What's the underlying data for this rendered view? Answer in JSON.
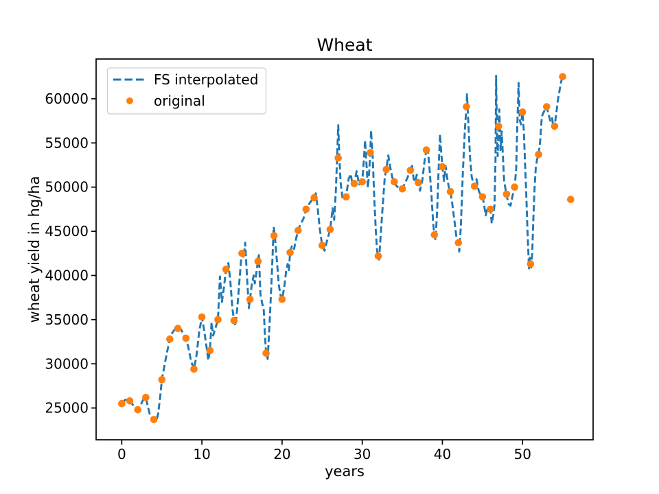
{
  "chart_data": {
    "type": "line",
    "title": "Wheat",
    "xlabel": "years",
    "ylabel": "wheat yield in hg/ha",
    "grid": false,
    "x_range": [
      -3.2,
      58.8
    ],
    "y_range": [
      21400,
      64500
    ],
    "x_ticks": [
      0,
      10,
      20,
      30,
      40,
      50
    ],
    "y_ticks": [
      25000,
      30000,
      35000,
      40000,
      45000,
      50000,
      55000,
      60000
    ],
    "colors": {
      "interpolated": "#1f77b4",
      "original": "#ff7f0e"
    },
    "legend": {
      "position": "upper-left",
      "items": [
        {
          "label": "FS interpolated",
          "marker": "dashed-line",
          "color": "#1f77b4"
        },
        {
          "label": "original",
          "marker": "dot",
          "color": "#ff7f0e"
        }
      ]
    },
    "series": [
      {
        "name": "FS interpolated",
        "type": "line",
        "linestyle": "dashed",
        "color": "#1f77b4",
        "points": [
          [
            0,
            25500
          ],
          [
            0.4,
            25900
          ],
          [
            0.7,
            26000
          ],
          [
            1,
            25800
          ],
          [
            1.35,
            25400
          ],
          [
            1.7,
            25000
          ],
          [
            2,
            24800
          ],
          [
            2.3,
            25200
          ],
          [
            2.65,
            25900
          ],
          [
            3,
            26200
          ],
          [
            3.2,
            25400
          ],
          [
            3.5,
            24300
          ],
          [
            3.75,
            24000
          ],
          [
            4,
            23700
          ],
          [
            4.3,
            23450
          ],
          [
            4.55,
            24400
          ],
          [
            4.8,
            26300
          ],
          [
            5,
            28200
          ],
          [
            5.3,
            29700
          ],
          [
            5.65,
            31300
          ],
          [
            6,
            32800
          ],
          [
            6.3,
            33500
          ],
          [
            6.65,
            33950
          ],
          [
            7,
            34100
          ],
          [
            7.3,
            34000
          ],
          [
            7.65,
            33500
          ],
          [
            8,
            32900
          ],
          [
            8.3,
            31900
          ],
          [
            8.65,
            30300
          ],
          [
            9,
            29400
          ],
          [
            9.3,
            30800
          ],
          [
            9.65,
            33600
          ],
          [
            10,
            35300
          ],
          [
            10.25,
            33900
          ],
          [
            10.5,
            32400
          ],
          [
            10.8,
            30400
          ],
          [
            11,
            31500
          ],
          [
            11.2,
            34700
          ],
          [
            11.4,
            33200
          ],
          [
            11.7,
            34100
          ],
          [
            12,
            35000
          ],
          [
            12.25,
            39900
          ],
          [
            12.5,
            37000
          ],
          [
            12.75,
            38700
          ],
          [
            13,
            40700
          ],
          [
            13.3,
            41400
          ],
          [
            13.55,
            39300
          ],
          [
            13.8,
            36300
          ],
          [
            14,
            34900
          ],
          [
            14.2,
            34300
          ],
          [
            14.5,
            37300
          ],
          [
            14.75,
            40200
          ],
          [
            15,
            43000
          ],
          [
            15.2,
            42000
          ],
          [
            15.4,
            43700
          ],
          [
            15.6,
            40300
          ],
          [
            15.85,
            36300
          ],
          [
            16,
            37300
          ],
          [
            16.2,
            38800
          ],
          [
            16.45,
            40000
          ],
          [
            16.6,
            39100
          ],
          [
            16.8,
            40300
          ],
          [
            17,
            41800
          ],
          [
            17.1,
            42300
          ],
          [
            17.3,
            37900
          ],
          [
            17.5,
            36900
          ],
          [
            17.7,
            36250
          ],
          [
            17.85,
            33500
          ],
          [
            18,
            31200
          ],
          [
            18.2,
            30550
          ],
          [
            18.45,
            34700
          ],
          [
            18.7,
            39600
          ],
          [
            18.95,
            45500
          ],
          [
            19.1,
            44500
          ],
          [
            19.35,
            41700
          ],
          [
            19.6,
            38900
          ],
          [
            19.8,
            37800
          ],
          [
            20,
            37250
          ],
          [
            20.3,
            38850
          ],
          [
            20.5,
            40500
          ],
          [
            20.7,
            41300
          ],
          [
            20.85,
            40600
          ],
          [
            21,
            42600
          ],
          [
            21.25,
            43400
          ],
          [
            21.5,
            43000
          ],
          [
            21.75,
            44200
          ],
          [
            22,
            45100
          ],
          [
            22.3,
            45800
          ],
          [
            22.65,
            46400
          ],
          [
            23,
            47500
          ],
          [
            23.3,
            48000
          ],
          [
            23.6,
            48400
          ],
          [
            24,
            48800
          ],
          [
            24.2,
            49300
          ],
          [
            24.45,
            47500
          ],
          [
            24.7,
            45300
          ],
          [
            25,
            43400
          ],
          [
            25.3,
            42800
          ],
          [
            25.6,
            43900
          ],
          [
            26,
            45200
          ],
          [
            26.3,
            47600
          ],
          [
            26.5,
            46300
          ],
          [
            26.7,
            49500
          ],
          [
            26.85,
            53000
          ],
          [
            27,
            57000
          ],
          [
            27.15,
            53300
          ],
          [
            27.3,
            50500
          ],
          [
            27.55,
            48700
          ],
          [
            27.8,
            48500
          ],
          [
            28,
            49000
          ],
          [
            28.3,
            50900
          ],
          [
            28.55,
            51500
          ],
          [
            28.8,
            50200
          ],
          [
            29,
            50400
          ],
          [
            29.3,
            51800
          ],
          [
            29.6,
            50300
          ],
          [
            30,
            50600
          ],
          [
            30.2,
            53000
          ],
          [
            30.35,
            55300
          ],
          [
            30.55,
            52300
          ],
          [
            30.7,
            49900
          ],
          [
            30.85,
            51500
          ],
          [
            31,
            53900
          ],
          [
            31.1,
            56400
          ],
          [
            31.3,
            53400
          ],
          [
            31.5,
            48800
          ],
          [
            31.7,
            45000
          ],
          [
            31.85,
            42800
          ],
          [
            32,
            42200
          ],
          [
            32.1,
            41800
          ],
          [
            32.3,
            44500
          ],
          [
            32.6,
            48500
          ],
          [
            32.8,
            51000
          ],
          [
            33,
            52000
          ],
          [
            33.25,
            53600
          ],
          [
            33.5,
            52200
          ],
          [
            33.75,
            51100
          ],
          [
            34,
            50600
          ],
          [
            34.3,
            50100
          ],
          [
            34.6,
            49900
          ],
          [
            35,
            49800
          ],
          [
            35.3,
            50400
          ],
          [
            35.65,
            51100
          ],
          [
            36,
            51900
          ],
          [
            36.2,
            52600
          ],
          [
            36.4,
            51000
          ],
          [
            36.6,
            50600
          ],
          [
            36.8,
            51400
          ],
          [
            37,
            50500
          ],
          [
            37.2,
            49600
          ],
          [
            37.5,
            50800
          ],
          [
            37.75,
            52800
          ],
          [
            38,
            54200
          ],
          [
            38.15,
            54600
          ],
          [
            38.4,
            52000
          ],
          [
            38.65,
            48900
          ],
          [
            38.85,
            45900
          ],
          [
            39,
            44600
          ],
          [
            39.15,
            44000
          ],
          [
            39.35,
            47500
          ],
          [
            39.55,
            52500
          ],
          [
            39.7,
            56000
          ],
          [
            39.85,
            54000
          ],
          [
            40,
            52300
          ],
          [
            40.2,
            50700
          ],
          [
            40.4,
            52400
          ],
          [
            40.6,
            51000
          ],
          [
            40.8,
            50000
          ],
          [
            41,
            49500
          ],
          [
            41.2,
            48300
          ],
          [
            41.5,
            46200
          ],
          [
            41.75,
            44300
          ],
          [
            42,
            43700
          ],
          [
            42.1,
            42700
          ],
          [
            42.3,
            45500
          ],
          [
            42.55,
            51500
          ],
          [
            42.8,
            56500
          ],
          [
            43,
            59100
          ],
          [
            43.07,
            60500
          ],
          [
            43.25,
            57000
          ],
          [
            43.45,
            53300
          ],
          [
            43.65,
            51200
          ],
          [
            43.85,
            50500
          ],
          [
            44,
            50100
          ],
          [
            44.25,
            50900
          ],
          [
            44.5,
            49700
          ],
          [
            44.75,
            49100
          ],
          [
            45,
            48900
          ],
          [
            45.2,
            48000
          ],
          [
            45.4,
            46800
          ],
          [
            45.65,
            47700
          ],
          [
            46,
            47500
          ],
          [
            46.15,
            45900
          ],
          [
            46.35,
            46800
          ],
          [
            46.5,
            48000
          ],
          [
            46.62,
            53000
          ],
          [
            46.7,
            62600
          ],
          [
            46.8,
            56000
          ],
          [
            46.9,
            53500
          ],
          [
            47,
            56950
          ],
          [
            47.1,
            58800
          ],
          [
            47.25,
            54200
          ],
          [
            47.4,
            56300
          ],
          [
            47.55,
            53500
          ],
          [
            47.7,
            50700
          ],
          [
            48,
            49100
          ],
          [
            48.25,
            48100
          ],
          [
            48.5,
            47900
          ],
          [
            48.75,
            49000
          ],
          [
            49,
            49900
          ],
          [
            49.2,
            52000
          ],
          [
            49.35,
            57000
          ],
          [
            49.5,
            61800
          ],
          [
            49.65,
            57600
          ],
          [
            49.8,
            57100
          ],
          [
            50,
            58450
          ],
          [
            50.15,
            56500
          ],
          [
            50.3,
            53000
          ],
          [
            50.45,
            49500
          ],
          [
            50.6,
            45500
          ],
          [
            50.8,
            40800
          ],
          [
            50.9,
            42000
          ],
          [
            51,
            41300
          ],
          [
            51.07,
            40900
          ],
          [
            51.2,
            42500
          ],
          [
            51.35,
            46500
          ],
          [
            51.5,
            50000
          ],
          [
            51.65,
            52200
          ],
          [
            51.8,
            53100
          ],
          [
            52,
            53700
          ],
          [
            52.2,
            55200
          ],
          [
            52.4,
            58000
          ],
          [
            52.6,
            58400
          ],
          [
            52.8,
            58800
          ],
          [
            53,
            59100
          ],
          [
            53.25,
            58200
          ],
          [
            53.5,
            57400
          ],
          [
            53.7,
            57800
          ],
          [
            53.85,
            56600
          ],
          [
            54,
            56900
          ],
          [
            54.2,
            58300
          ],
          [
            54.4,
            59800
          ],
          [
            54.6,
            60900
          ],
          [
            54.8,
            61900
          ],
          [
            55,
            62500
          ]
        ]
      },
      {
        "name": "original",
        "type": "scatter",
        "marker": "dot",
        "color": "#ff7f0e",
        "x": [
          0,
          1,
          2,
          3,
          4,
          5,
          6,
          7,
          8,
          9,
          10,
          11,
          12,
          13,
          14,
          15,
          16,
          17,
          18,
          19,
          20,
          21,
          22,
          23,
          24,
          25,
          26,
          27,
          28,
          29,
          30,
          31,
          32,
          33,
          34,
          35,
          36,
          37,
          38,
          39,
          40,
          41,
          42,
          43,
          44,
          45,
          46,
          47,
          48,
          49,
          50,
          51,
          52,
          53,
          54,
          55,
          56
        ],
        "y": [
          25500,
          25800,
          24800,
          26200,
          23700,
          28200,
          32800,
          34000,
          32900,
          29400,
          35300,
          31500,
          35000,
          40700,
          34900,
          42500,
          37300,
          41600,
          31200,
          44500,
          37300,
          42600,
          45100,
          47500,
          48800,
          43400,
          45200,
          53300,
          48900,
          50400,
          50600,
          53900,
          42200,
          52000,
          50600,
          49800,
          51900,
          50500,
          54200,
          44600,
          52300,
          49500,
          43700,
          59100,
          50100,
          48900,
          47500,
          56900,
          49200,
          50000,
          58500,
          41300,
          53700,
          59100,
          56900,
          62500,
          48600
        ]
      }
    ]
  }
}
